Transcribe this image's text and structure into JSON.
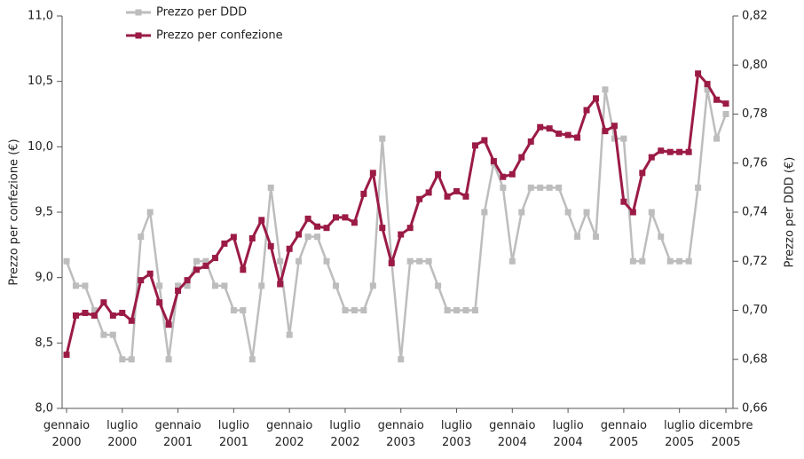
{
  "chart_data": {
    "type": "line",
    "y_label": "Prezzo per confezione (€)",
    "y2_label": "Prezzo per DDD (€)",
    "categories": [
      [
        "gennaio",
        "2000"
      ],
      null,
      null,
      null,
      null,
      null,
      [
        "luglio",
        "2000"
      ],
      null,
      null,
      null,
      null,
      null,
      [
        "gennaio",
        "2001"
      ],
      null,
      null,
      null,
      null,
      null,
      [
        "luglio",
        "2001"
      ],
      null,
      null,
      null,
      null,
      null,
      [
        "gennaio",
        "2002"
      ],
      null,
      null,
      null,
      null,
      null,
      [
        "luglio",
        "2002"
      ],
      null,
      null,
      null,
      null,
      null,
      [
        "gennaio",
        "2003"
      ],
      null,
      null,
      null,
      null,
      null,
      [
        "luglio",
        "2003"
      ],
      null,
      null,
      null,
      null,
      null,
      [
        "gennaio",
        "2004"
      ],
      null,
      null,
      null,
      null,
      null,
      [
        "luglio",
        "2004"
      ],
      null,
      null,
      null,
      null,
      null,
      [
        "gennaio",
        "2005"
      ],
      null,
      null,
      null,
      null,
      null,
      [
        "luglio",
        "2005"
      ],
      null,
      null,
      null,
      null,
      [
        "dicembre",
        "2005"
      ]
    ],
    "series": [
      {
        "name": "Prezzo per DDD",
        "color": "#bdbdbd",
        "axis": "y2",
        "values": [
          0.72,
          0.71,
          0.71,
          0.7,
          0.69,
          0.69,
          0.68,
          0.68,
          0.73,
          0.74,
          0.71,
          0.68,
          0.71,
          0.71,
          0.72,
          0.72,
          0.71,
          0.71,
          0.7,
          0.7,
          0.68,
          0.71,
          0.75,
          0.72,
          0.69,
          0.72,
          0.73,
          0.73,
          0.72,
          0.71,
          0.7,
          0.7,
          0.7,
          0.71,
          0.77,
          0.72,
          0.68,
          0.72,
          0.72,
          0.72,
          0.71,
          0.7,
          0.7,
          0.7,
          0.7,
          0.74,
          0.76,
          0.75,
          0.72,
          0.74,
          0.75,
          0.75,
          0.75,
          0.75,
          0.74,
          0.73,
          0.74,
          0.73,
          0.79,
          0.77,
          0.77,
          0.72,
          0.72,
          0.74,
          0.73,
          0.72,
          0.72,
          0.72,
          0.75,
          0.79,
          0.77,
          0.78
        ]
      },
      {
        "name": "Prezzo per confezione",
        "color": "#9b1b45",
        "values": [
          8.41,
          8.71,
          8.73,
          8.71,
          8.81,
          8.71,
          8.73,
          8.67,
          8.98,
          9.03,
          8.81,
          8.64,
          8.9,
          8.98,
          9.06,
          9.09,
          9.15,
          9.26,
          9.31,
          9.06,
          9.3,
          9.44,
          9.24,
          8.95,
          9.22,
          9.33,
          9.45,
          9.39,
          9.38,
          9.46,
          9.46,
          9.42,
          9.64,
          9.8,
          9.38,
          9.11,
          9.33,
          9.38,
          9.6,
          9.65,
          9.79,
          9.62,
          9.66,
          9.62,
          10.01,
          10.05,
          9.89,
          9.77,
          9.79,
          9.92,
          10.04,
          10.15,
          10.14,
          10.1,
          10.09,
          10.07,
          10.28,
          10.37,
          10.12,
          10.16,
          9.58,
          9.5,
          9.8,
          9.92,
          9.97,
          9.96,
          9.96,
          9.96,
          10.56,
          10.48,
          10.36,
          10.33
        ]
      }
    ],
    "ylim": [
      8.0,
      11.0
    ],
    "yticks": [
      {
        "value": 8.0,
        "label": "8,0"
      },
      {
        "value": 8.5,
        "label": "8,5"
      },
      {
        "value": 9.0,
        "label": "9,0"
      },
      {
        "value": 9.5,
        "label": "9,5"
      },
      {
        "value": 10.0,
        "label": "10,0"
      },
      {
        "value": 10.5,
        "label": "10,5"
      },
      {
        "value": 11.0,
        "label": "11,0"
      }
    ],
    "y2lim": [
      0.66,
      0.82
    ],
    "y2ticks": [
      {
        "value": 0.66,
        "label": "0,66"
      },
      {
        "value": 0.68,
        "label": "0,68"
      },
      {
        "value": 0.7,
        "label": "0,70"
      },
      {
        "value": 0.72,
        "label": "0,72"
      },
      {
        "value": 0.74,
        "label": "0,74"
      },
      {
        "value": 0.76,
        "label": "0,76"
      },
      {
        "value": 0.78,
        "label": "0,78"
      },
      {
        "value": 0.8,
        "label": "0,80"
      },
      {
        "value": 0.82,
        "label": "0,82"
      }
    ],
    "grid": false
  }
}
